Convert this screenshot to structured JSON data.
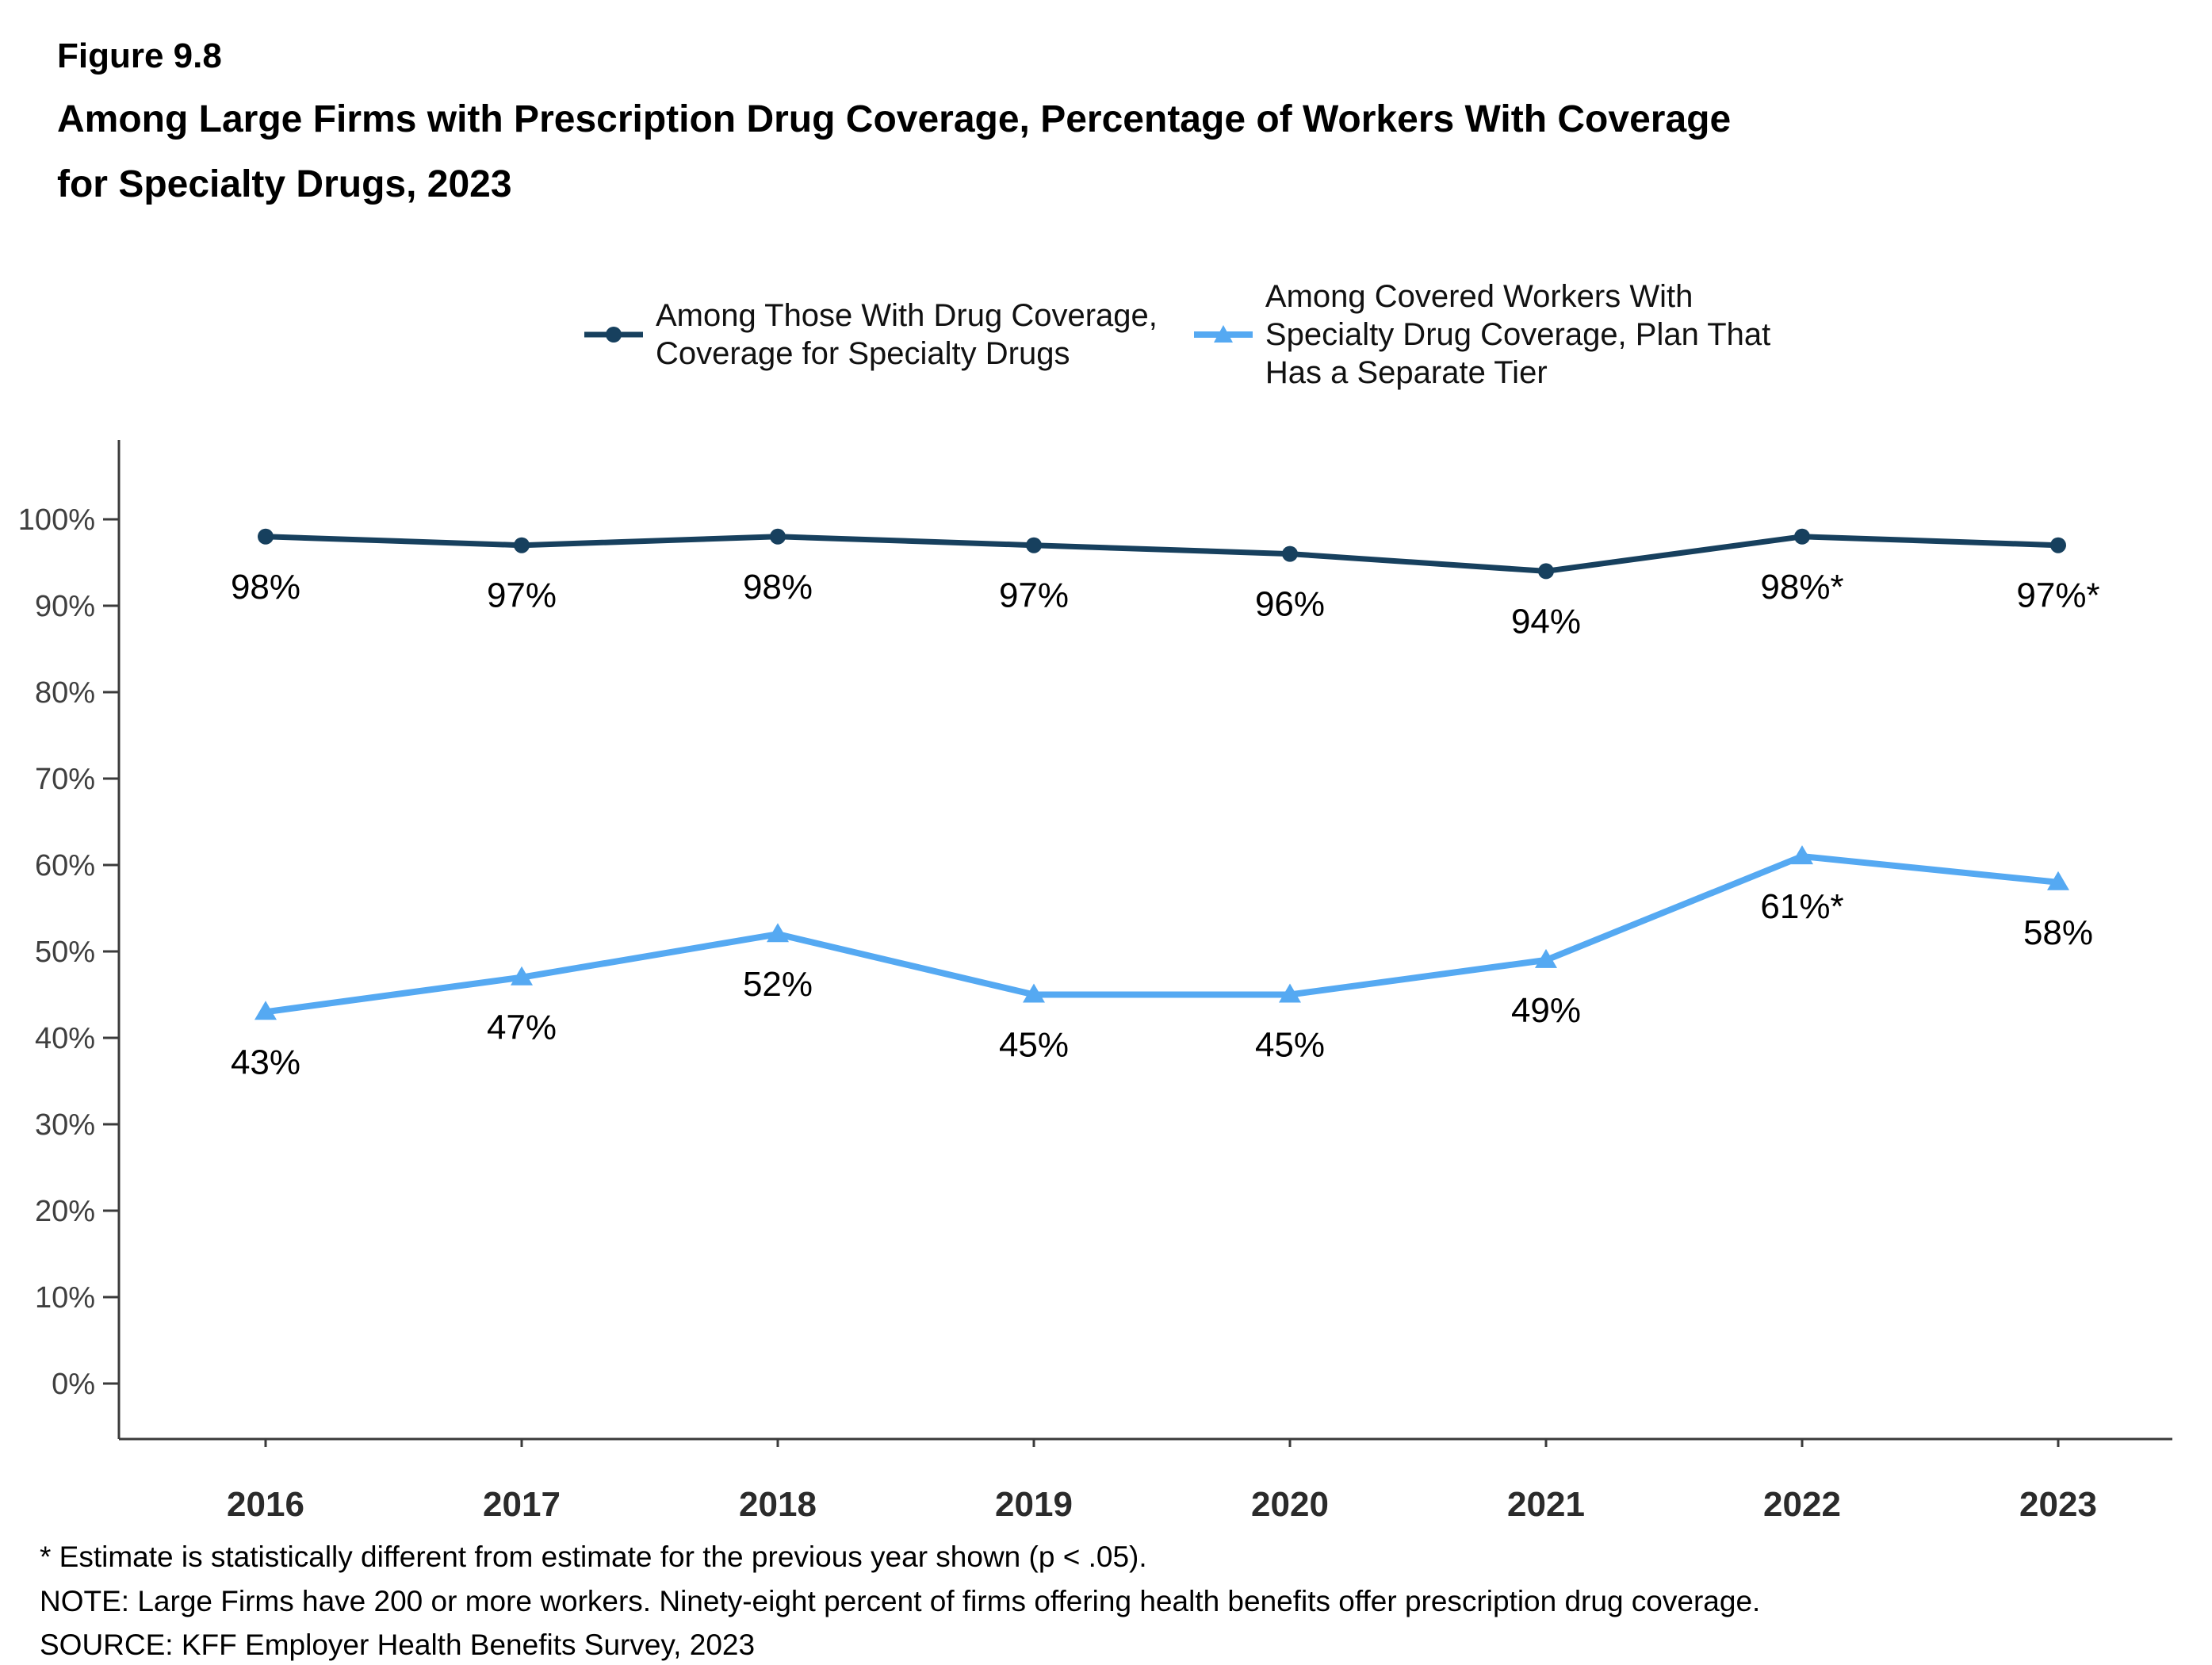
{
  "figure": {
    "number": "Figure 9.8",
    "title": "Among Large Firms with Prescription Drug Coverage, Percentage of Workers With Coverage\nfor Specialty Drugs, 2023"
  },
  "chart_data": {
    "type": "line",
    "title": "Among Large Firms with Prescription Drug Coverage, Percentage of Workers With Coverage for Specialty Drugs, 2023",
    "xlabel": "",
    "ylabel": "",
    "x_labels": [
      "2016",
      "2017",
      "2018",
      "2019",
      "2020",
      "2021",
      "2022",
      "2023"
    ],
    "ylim": [
      0,
      100
    ],
    "y_ticks": [
      0,
      10,
      20,
      30,
      40,
      50,
      60,
      70,
      80,
      90,
      100
    ],
    "y_tick_labels": [
      "0%",
      "10%",
      "20%",
      "30%",
      "40%",
      "50%",
      "60%",
      "70%",
      "80%",
      "90%",
      "100%"
    ],
    "grid": false,
    "legend_position": "top",
    "series": [
      {
        "name": "Among Those With Drug Coverage,\nCoverage for Specialty Drugs",
        "color": "#17405E",
        "marker": "circle",
        "values": [
          98,
          97,
          98,
          97,
          96,
          94,
          98,
          97
        ],
        "labels": [
          "98%",
          "97%",
          "98%",
          "97%",
          "96%",
          "94%",
          "98%*",
          "97%*"
        ]
      },
      {
        "name": "Among Covered Workers With\nSpecialty Drug Coverage, Plan That\nHas a Separate Tier",
        "color": "#55A9F2",
        "marker": "triangle",
        "values": [
          43,
          47,
          52,
          45,
          45,
          49,
          61,
          58
        ],
        "labels": [
          "43%",
          "47%",
          "52%",
          "45%",
          "45%",
          "49%",
          "61%*",
          "58%"
        ]
      }
    ]
  },
  "footnotes": [
    "* Estimate is statistically different from estimate for the previous year shown (p < .05).",
    "NOTE: Large Firms have 200 or more workers. Ninety-eight percent of firms offering health benefits offer prescription drug coverage.",
    "SOURCE: KFF Employer Health Benefits Survey, 2023"
  ]
}
